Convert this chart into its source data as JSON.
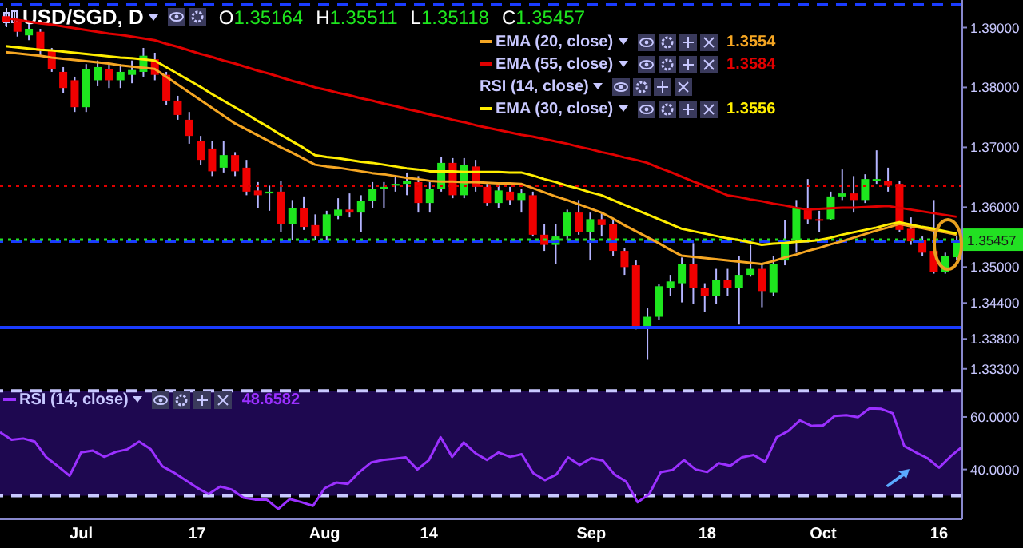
{
  "chart_data": [
    {
      "type": "candlestick",
      "title": "USD/SGD, D",
      "subtitle": "O1.35164 H1.35511 L1.35118 C1.35457",
      "categories": [
        null,
        null,
        null,
        null,
        null,
        null,
        null,
        null,
        null,
        null,
        null,
        null,
        null,
        null,
        null,
        null,
        null,
        null,
        null,
        null,
        null,
        null,
        null,
        null,
        null,
        null,
        null,
        null,
        null,
        null,
        null,
        null,
        null,
        null,
        null,
        null,
        null,
        null,
        null,
        null,
        null,
        null,
        null,
        null,
        null,
        null,
        null,
        null,
        null,
        null,
        null,
        null,
        null,
        null,
        null,
        null,
        null,
        null,
        null,
        null,
        null,
        null,
        null,
        null,
        null,
        null,
        null,
        null,
        null,
        null,
        null,
        null,
        null,
        null,
        null,
        null,
        null,
        null,
        null,
        null,
        null,
        null,
        null,
        null
      ],
      "ohlc": [
        [
          1.3919,
          1.3925,
          1.3903,
          1.3909
        ],
        [
          1.3911,
          1.3917,
          1.3885,
          1.3893
        ],
        [
          1.3887,
          1.3906,
          1.3879,
          1.3898
        ],
        [
          1.3893,
          1.3898,
          1.3853,
          1.3861
        ],
        [
          1.3861,
          1.3866,
          1.3826,
          1.3831
        ],
        [
          1.3826,
          1.3834,
          1.3791,
          1.3799
        ],
        [
          1.3812,
          1.3818,
          1.3759,
          1.3767
        ],
        [
          1.3767,
          1.3839,
          1.3759,
          1.3831
        ],
        [
          1.3812,
          1.3845,
          1.3802,
          1.3834
        ],
        [
          1.3831,
          1.3839,
          1.3799,
          1.3812
        ],
        [
          1.3812,
          1.3839,
          1.3799,
          1.3826
        ],
        [
          1.3821,
          1.3845,
          1.3807,
          1.3829
        ],
        [
          1.3826,
          1.3866,
          1.3818,
          1.3853
        ],
        [
          1.3847,
          1.3858,
          1.3812,
          1.3821
        ],
        [
          1.3821,
          1.3826,
          1.377,
          1.3778
        ],
        [
          1.3778,
          1.3786,
          1.3746,
          1.3754
        ],
        [
          1.3746,
          1.3759,
          1.3706,
          1.3719
        ],
        [
          1.3711,
          1.3719,
          1.3671,
          1.3679
        ],
        [
          1.3698,
          1.3711,
          1.3652,
          1.366
        ],
        [
          1.3666,
          1.3711,
          1.3658,
          1.3687
        ],
        [
          1.3687,
          1.3692,
          1.3652,
          1.366
        ],
        [
          1.3666,
          1.3679,
          1.362,
          1.3626
        ],
        [
          1.3628,
          1.3642,
          1.3599,
          1.362
        ],
        [
          1.3623,
          1.3636,
          1.3594,
          1.3626
        ],
        [
          1.3626,
          1.3644,
          1.3559,
          1.3572
        ],
        [
          1.3572,
          1.3612,
          1.3545,
          1.3599
        ],
        [
          1.3599,
          1.3618,
          1.3562,
          1.3567
        ],
        [
          1.357,
          1.3588,
          1.3545,
          1.3551
        ],
        [
          1.3551,
          1.3594,
          1.3545,
          1.3588
        ],
        [
          1.3586,
          1.3615,
          1.358,
          1.3596
        ],
        [
          1.3596,
          1.3623,
          1.3583,
          1.3591
        ],
        [
          1.3591,
          1.362,
          1.3559,
          1.361
        ],
        [
          1.361,
          1.3642,
          1.3599,
          1.3631
        ],
        [
          1.3631,
          1.3642,
          1.3599,
          1.3634
        ],
        [
          1.3636,
          1.365,
          1.3626,
          1.3639
        ],
        [
          1.3639,
          1.3658,
          1.362,
          1.3644
        ],
        [
          1.3642,
          1.3652,
          1.3591,
          1.3607
        ],
        [
          1.3607,
          1.3642,
          1.3591,
          1.3631
        ],
        [
          1.3631,
          1.3684,
          1.3626,
          1.3674
        ],
        [
          1.3674,
          1.3682,
          1.3615,
          1.362
        ],
        [
          1.362,
          1.3682,
          1.3615,
          1.3671
        ],
        [
          1.3668,
          1.3679,
          1.3626,
          1.3634
        ],
        [
          1.3634,
          1.3639,
          1.3602,
          1.3607
        ],
        [
          1.3607,
          1.3636,
          1.3599,
          1.3628
        ],
        [
          1.3626,
          1.3634,
          1.3604,
          1.3612
        ],
        [
          1.3612,
          1.3631,
          1.3591,
          1.3623
        ],
        [
          1.362,
          1.3626,
          1.3551,
          1.3554
        ],
        [
          1.3554,
          1.3572,
          1.3527,
          1.3537
        ],
        [
          1.3537,
          1.3572,
          1.3505,
          1.3551
        ],
        [
          1.3551,
          1.3596,
          1.3545,
          1.3591
        ],
        [
          1.3591,
          1.3612,
          1.3554,
          1.3559
        ],
        [
          1.3559,
          1.3591,
          1.3511,
          1.358
        ],
        [
          1.358,
          1.3591,
          1.3551,
          1.357
        ],
        [
          1.3572,
          1.3578,
          1.3519,
          1.3527
        ],
        [
          1.3527,
          1.3532,
          1.3487,
          1.35
        ],
        [
          1.3503,
          1.3511,
          1.3396,
          1.3399
        ],
        [
          1.3399,
          1.3431,
          1.3345,
          1.3417
        ],
        [
          1.3417,
          1.3471,
          1.3412,
          1.3468
        ],
        [
          1.3465,
          1.3487,
          1.3452,
          1.3476
        ],
        [
          1.3473,
          1.3516,
          1.3441,
          1.3505
        ],
        [
          1.3505,
          1.354,
          1.3439,
          1.3465
        ],
        [
          1.3465,
          1.3473,
          1.3425,
          1.3452
        ],
        [
          1.3452,
          1.3497,
          1.3439,
          1.3479
        ],
        [
          1.3479,
          1.3497,
          1.3452,
          1.3465
        ],
        [
          1.3465,
          1.3519,
          1.3404,
          1.3487
        ],
        [
          1.3487,
          1.3537,
          1.3484,
          1.3497
        ],
        [
          1.3497,
          1.3505,
          1.3433,
          1.346
        ],
        [
          1.3457,
          1.3519,
          1.3452,
          1.3505
        ],
        [
          1.3511,
          1.3578,
          1.3503,
          1.3545
        ],
        [
          1.3545,
          1.3612,
          1.3524,
          1.3599
        ],
        [
          1.3599,
          1.3647,
          1.3572,
          1.358
        ],
        [
          1.358,
          1.3594,
          1.3559,
          1.3578
        ],
        [
          1.358,
          1.3626,
          1.3578,
          1.3618
        ],
        [
          1.3618,
          1.3663,
          1.3612,
          1.3623
        ],
        [
          1.3623,
          1.3652,
          1.3591,
          1.3612
        ],
        [
          1.3612,
          1.3655,
          1.3607,
          1.3647
        ],
        [
          1.3646,
          1.3695,
          1.3639,
          1.3647
        ],
        [
          1.3644,
          1.3666,
          1.3626,
          1.3636
        ],
        [
          1.3639,
          1.3644,
          1.3559,
          1.3562
        ],
        [
          1.3564,
          1.3583,
          1.3537,
          1.3543
        ],
        [
          1.3545,
          1.3551,
          1.3519,
          1.3524
        ],
        [
          1.3527,
          1.3612,
          1.3489,
          1.3492
        ],
        [
          1.3492,
          1.3524,
          1.3489,
          1.3519
        ],
        [
          1.35164,
          1.35511,
          1.35118,
          1.35457
        ]
      ],
      "series": [
        {
          "name": "EMA (20, close)",
          "type": "line",
          "color": "#f5a623",
          "values": [
            1.3859,
            1.3857,
            1.3855,
            1.3853,
            1.385,
            1.3848,
            1.3846,
            1.3844,
            1.3842,
            1.384,
            1.3837,
            1.3835,
            1.3833,
            1.3831,
            1.3818,
            1.3805,
            1.3792,
            1.3779,
            1.3766,
            1.3753,
            1.374,
            1.373,
            1.372,
            1.371,
            1.37,
            1.3691,
            1.3681,
            1.3671,
            1.3668,
            1.3666,
            1.3663,
            1.366,
            1.3657,
            1.3655,
            1.3652,
            1.3649,
            1.3647,
            1.3644,
            1.3643,
            1.3643,
            1.3642,
            1.3642,
            1.3641,
            1.364,
            1.364,
            1.3639,
            1.3632,
            1.3625,
            1.3618,
            1.3612,
            1.3605,
            1.3598,
            1.3591,
            1.3581,
            1.357,
            1.356,
            1.355,
            1.354,
            1.3529,
            1.3519,
            1.3517,
            1.3515,
            1.3513,
            1.3511,
            1.3509,
            1.3507,
            1.3505,
            1.351,
            1.3516,
            1.3521,
            1.3527,
            1.3532,
            1.3538,
            1.3543,
            1.3549,
            1.3555,
            1.3561,
            1.3566,
            1.3572,
            1.3568,
            1.3565,
            1.3561,
            1.3558,
            1.3554
          ]
        },
        {
          "name": "EMA (55, close)",
          "type": "line",
          "color": "#e00000",
          "values": [
            1.3916,
            1.3913,
            1.391,
            1.3907,
            1.3905,
            1.3902,
            1.3899,
            1.3896,
            1.3893,
            1.389,
            1.3888,
            1.3885,
            1.3882,
            1.3879,
            1.3873,
            1.3868,
            1.3862,
            1.3856,
            1.3851,
            1.3845,
            1.384,
            1.3834,
            1.3828,
            1.3823,
            1.3817,
            1.3811,
            1.3806,
            1.38,
            1.3796,
            1.3791,
            1.3787,
            1.3782,
            1.3778,
            1.3773,
            1.3769,
            1.3764,
            1.376,
            1.3755,
            1.3751,
            1.3746,
            1.3742,
            1.3737,
            1.3733,
            1.3729,
            1.3725,
            1.3721,
            1.3718,
            1.3714,
            1.371,
            1.3706,
            1.3701,
            1.3697,
            1.3692,
            1.3688,
            1.3683,
            1.3679,
            1.3674,
            1.3666,
            1.3659,
            1.3651,
            1.3643,
            1.3636,
            1.3628,
            1.362,
            1.3617,
            1.3613,
            1.361,
            1.3606,
            1.3603,
            1.3599,
            1.3596,
            1.3597,
            1.3598,
            1.3599,
            1.3599,
            1.36,
            1.3601,
            1.3602,
            1.3599,
            1.3596,
            1.3593,
            1.359,
            1.3587,
            1.3584
          ]
        },
        {
          "name": "EMA (30, close)",
          "type": "line",
          "color": "#ffee00",
          "values": [
            1.3869,
            1.3867,
            1.3865,
            1.3863,
            1.3862,
            1.386,
            1.3858,
            1.3856,
            1.3854,
            1.3852,
            1.385,
            1.3849,
            1.3847,
            1.3845,
            1.3834,
            1.3823,
            1.3812,
            1.3801,
            1.3789,
            1.3778,
            1.3767,
            1.3756,
            1.3744,
            1.3733,
            1.3721,
            1.371,
            1.3699,
            1.3687,
            1.3684,
            1.3682,
            1.3679,
            1.3676,
            1.3674,
            1.3671,
            1.3668,
            1.3665,
            1.3663,
            1.366,
            1.366,
            1.366,
            1.3659,
            1.3659,
            1.3659,
            1.3659,
            1.3658,
            1.3658,
            1.3653,
            1.3647,
            1.3642,
            1.3636,
            1.3631,
            1.3625,
            1.362,
            1.3612,
            1.3604,
            1.3596,
            1.3588,
            1.358,
            1.3572,
            1.3564,
            1.356,
            1.3556,
            1.3552,
            1.3548,
            1.3545,
            1.3541,
            1.3537,
            1.3539,
            1.354,
            1.3542,
            1.3543,
            1.3545,
            1.3549,
            1.3554,
            1.3558,
            1.3562,
            1.3566,
            1.3571,
            1.3575,
            1.3571,
            1.3567,
            1.3564,
            1.356,
            1.3556
          ]
        }
      ],
      "annotations": [
        "1.3554",
        "1.3584",
        "1.3556",
        "RSI (14, close)"
      ],
      "ylim": [
        1.3311,
        1.3946
      ],
      "yticks": [
        {
          "value": 1.39,
          "label": "1.39000"
        },
        {
          "value": 1.38,
          "label": "1.38000"
        },
        {
          "value": 1.37,
          "label": "1.37000"
        },
        {
          "value": 1.36,
          "label": "1.36000"
        },
        {
          "value": 1.35,
          "label": "1.35000"
        },
        {
          "value": 1.344,
          "label": "1.34400"
        },
        {
          "value": 1.338,
          "label": "1.33800"
        },
        {
          "value": 1.333,
          "label": "1.33300"
        }
      ],
      "ref_lines": [
        {
          "axis": "y",
          "value": 1.3938,
          "color": "#1a3cff",
          "line_style": "dashed"
        },
        {
          "axis": "y",
          "value": 1.3636,
          "color": "#e00000",
          "line_style": "dotted"
        },
        {
          "axis": "y",
          "value": 1.3543,
          "color": "#1a3cff",
          "line_style": "dashed"
        },
        {
          "axis": "y",
          "value": 1.3399,
          "color": "#1a3cff",
          "line_style": "solid"
        },
        {
          "axis": "y",
          "value": 1.35457,
          "label": "1.35457",
          "color": "#22e022",
          "line_style": "dotted"
        }
      ],
      "legend": "top",
      "tick_labels": "y"
    },
    {
      "type": "line",
      "categories": [
        null,
        null,
        null,
        null,
        null,
        null,
        null,
        "Jul",
        null,
        null,
        null,
        null,
        null,
        null,
        null,
        null,
        null,
        "17",
        null,
        null,
        null,
        null,
        null,
        null,
        null,
        null,
        null,
        null,
        "Aug",
        null,
        null,
        null,
        null,
        null,
        null,
        null,
        null,
        "14",
        null,
        null,
        null,
        null,
        null,
        null,
        null,
        null,
        null,
        null,
        null,
        null,
        null,
        "Sep",
        null,
        null,
        null,
        null,
        null,
        null,
        null,
        null,
        null,
        "18",
        null,
        null,
        null,
        null,
        null,
        null,
        null,
        null,
        null,
        "Oct",
        null,
        null,
        null,
        null,
        null,
        null,
        null,
        null,
        null,
        "16",
        null,
        null
      ],
      "series": [
        {
          "name": "RSI (14, close)",
          "color": "#9b30ff",
          "values": [
            54.2,
            51.3,
            51.8,
            50.6,
            44.6,
            41.2,
            37.6,
            46.5,
            47.2,
            44.8,
            46.7,
            47.7,
            50.6,
            47.7,
            41.2,
            38.8,
            35.9,
            33.0,
            30.6,
            33.5,
            32.3,
            29.2,
            28.5,
            28.5,
            24.9,
            28.7,
            27.5,
            26.1,
            32.8,
            35.0,
            34.5,
            39.0,
            42.6,
            43.6,
            44.1,
            44.6,
            40.0,
            43.6,
            52.3,
            44.8,
            50.3,
            46.2,
            43.6,
            46.5,
            44.8,
            45.8,
            38.6,
            35.9,
            38.1,
            44.6,
            41.7,
            44.3,
            43.4,
            38.1,
            35.4,
            27.5,
            30.6,
            39.0,
            39.8,
            43.6,
            40.0,
            39.0,
            42.4,
            41.4,
            44.6,
            45.5,
            42.9,
            52.3,
            54.7,
            58.7,
            56.6,
            56.8,
            60.4,
            60.7,
            59.9,
            63.3,
            63.1,
            61.4,
            48.9,
            46.5,
            44.3,
            40.7,
            45.0,
            48.6582
          ]
        }
      ],
      "annotations": [
        "48.6582"
      ],
      "ylim": [
        21,
        74
      ],
      "yticks": [
        {
          "value": 60,
          "label": "60.0000"
        },
        {
          "value": 40,
          "label": "40.0000"
        }
      ],
      "ref_lines": [
        {
          "axis": "y",
          "value": 70,
          "color": "#c8c8ff",
          "line_style": "dashed"
        },
        {
          "axis": "y",
          "value": 30,
          "color": "#c8c8ff",
          "line_style": "dashed"
        }
      ],
      "bands": [
        {
          "axis": "y",
          "from": 30,
          "to": 70,
          "color": "#1e0850"
        }
      ],
      "legend": "top left"
    }
  ]
}
